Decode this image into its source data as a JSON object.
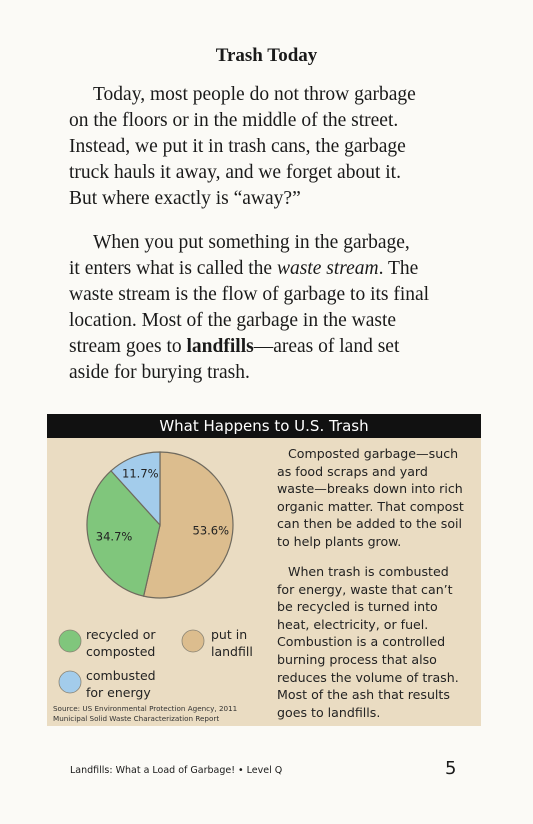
{
  "title": "Trash Today",
  "paragraphs": [
    [
      [
        "Today, most people do not throw garbage"
      ],
      [
        "on the floors or in the middle of the street."
      ],
      [
        "Instead, we put it in trash cans, the garbage"
      ],
      [
        "truck hauls it away, and we forget about it."
      ],
      [
        "But where exactly is “away?”"
      ]
    ],
    [
      [
        "When you put something in the garbage,"
      ],
      [
        "it enters what is called the ",
        "waste stream",
        ". The"
      ],
      [
        "waste stream is the flow of garbage to its final"
      ],
      [
        "location. Most of the garbage in the waste"
      ],
      [
        "stream goes to ",
        "landfills",
        "—areas of land set"
      ],
      [
        "aside for burying trash."
      ]
    ]
  ],
  "chart_data": {
    "type": "pie",
    "title": "What Happens to U.S. Trash",
    "categories": [
      "put in landfill",
      "recycled or composted",
      "combusted for energy"
    ],
    "values": [
      53.6,
      34.7,
      11.7
    ],
    "value_labels": [
      "53.6%",
      "34.7%",
      "11.7%"
    ],
    "colors": [
      "#dcbd8e",
      "#80c67c",
      "#a3cceb"
    ],
    "source": [
      "Source: US Environmental Protection Agency, 2011",
      "Municipal Solid Waste Characterization Report"
    ]
  },
  "sidebar": [
    [
      "Composted garbage—such",
      "as food scraps and yard",
      "waste—breaks down into rich",
      "organic matter. That compost",
      "can then be added to the soil",
      "to help plants grow."
    ],
    [
      "When trash is combusted",
      "for energy, waste that can’t",
      "be recycled is turned into",
      "heat, electricity, or fuel.",
      "Combustion is a controlled",
      "burning process that also",
      "reduces the volume of trash.",
      "Most of the ash that results",
      "goes to landfills."
    ]
  ],
  "footer": {
    "book": "Landfills: What a Load of Garbage! • Level Q",
    "page": "5"
  }
}
